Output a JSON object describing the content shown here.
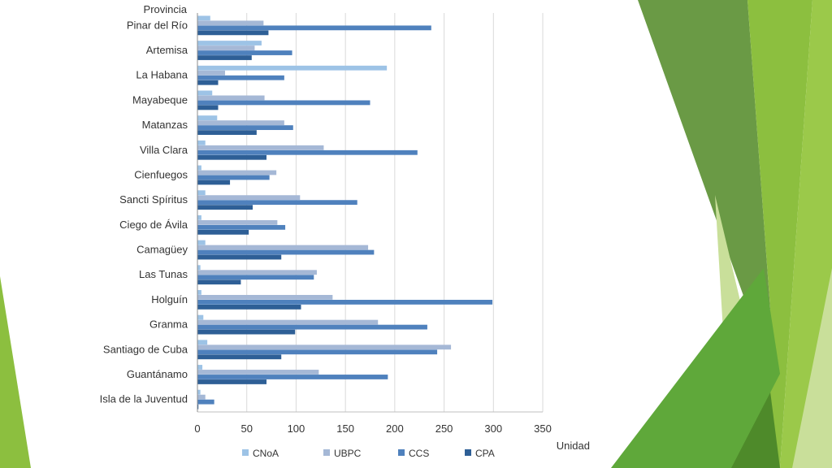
{
  "chart_data": {
    "type": "bar",
    "orientation": "horizontal",
    "category_axis_title": "Provincia",
    "value_axis_title": "Unidad",
    "categories": [
      "Pinar del Río",
      "Artemisa",
      "La Habana",
      "Mayabeque",
      "Matanzas",
      "Villa Clara",
      "Cienfuegos",
      "Sancti Spíritus",
      "Ciego de Ávila",
      "Camagüey",
      "Las Tunas",
      "Holguín",
      "Granma",
      "Santiago de Cuba",
      "Guantánamo",
      "Isla de la Juventud"
    ],
    "series": [
      {
        "name": "CNoA",
        "color": "#9dc3e6",
        "values": [
          13,
          65,
          192,
          15,
          20,
          8,
          4,
          8,
          4,
          8,
          3,
          4,
          6,
          10,
          5,
          3
        ]
      },
      {
        "name": "UBPC",
        "color": "#a5b8d6",
        "values": [
          67,
          58,
          28,
          68,
          88,
          128,
          80,
          104,
          81,
          173,
          121,
          137,
          183,
          257,
          123,
          8
        ]
      },
      {
        "name": "CCS",
        "color": "#4f81bd",
        "values": [
          237,
          96,
          88,
          175,
          97,
          223,
          73,
          162,
          89,
          179,
          118,
          299,
          233,
          243,
          193,
          17
        ]
      },
      {
        "name": "CPA",
        "color": "#2e5f96",
        "values": [
          72,
          55,
          21,
          21,
          60,
          70,
          33,
          56,
          52,
          85,
          44,
          105,
          99,
          85,
          70,
          1
        ]
      }
    ],
    "xlim": [
      0,
      350
    ],
    "xticks": [
      0,
      50,
      100,
      150,
      200,
      250,
      300,
      350
    ],
    "grid": true,
    "legend_position": "bottom"
  },
  "decoration": {
    "colors": [
      "#6a9a45",
      "#8cbf3f",
      "#5fa83a",
      "#c9df9a",
      "#4e8a2a",
      "#9bc94a"
    ]
  }
}
